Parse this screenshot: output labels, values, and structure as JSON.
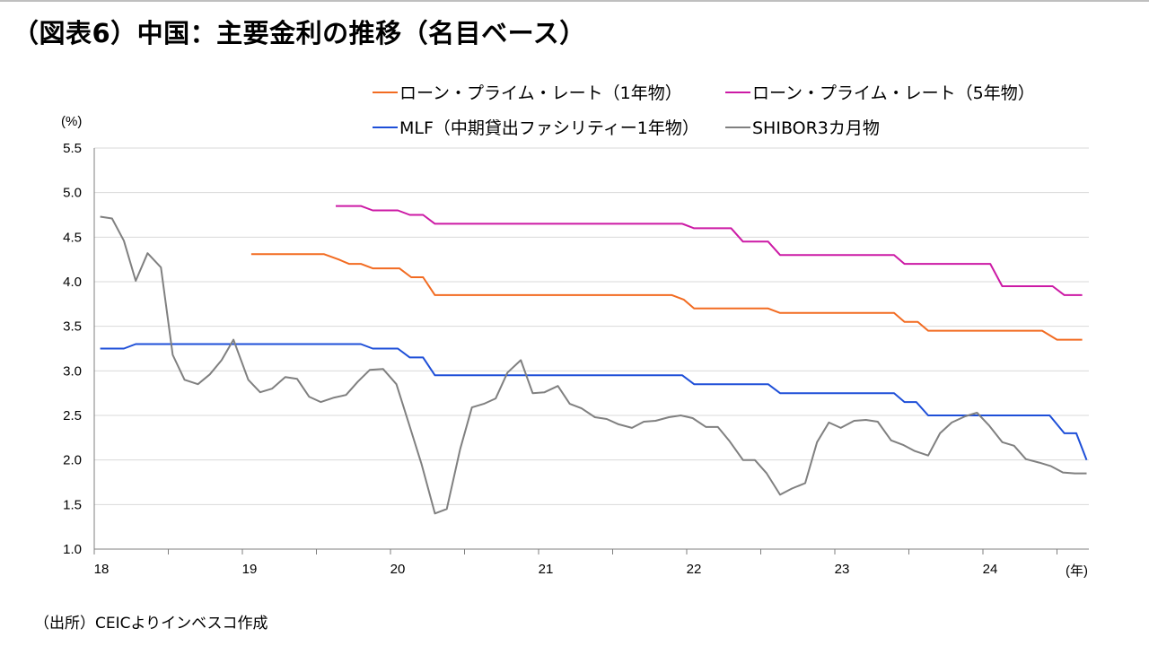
{
  "page": {
    "title": "（図表6）中国：主要金利の推移（名目ベース）",
    "source": "（出所）CEICよりインベスコ作成"
  },
  "chart_data": {
    "type": "line",
    "title": "",
    "xlabel": "(年)",
    "ylabel": "(%)",
    "ylim": [
      1.0,
      5.5
    ],
    "yticks": [
      "1.0",
      "1.5",
      "2.0",
      "2.5",
      "3.0",
      "3.5",
      "4.0",
      "4.5",
      "5.0",
      "5.5"
    ],
    "xlim": [
      2018.0,
      2024.7
    ],
    "xticks": [
      "18",
      "19",
      "20",
      "21",
      "22",
      "23",
      "24"
    ],
    "grid": true,
    "legend": "top",
    "series": [
      {
        "name": "ローン・プライム・レート（1年物）",
        "color": "#f26b21",
        "x": [
          2019.06,
          2019.55,
          2019.65,
          2019.72,
          2019.8,
          2019.88,
          2020.06,
          2020.14,
          2020.22,
          2020.3,
          2021.9,
          2021.98,
          2022.05,
          2022.55,
          2022.63,
          2023.4,
          2023.47,
          2023.56,
          2023.63,
          2024.4,
          2024.5,
          2024.67
        ],
        "values": [
          4.31,
          4.31,
          4.25,
          4.2,
          4.2,
          4.15,
          4.15,
          4.05,
          4.05,
          3.85,
          3.85,
          3.8,
          3.7,
          3.7,
          3.65,
          3.65,
          3.55,
          3.55,
          3.45,
          3.45,
          3.35,
          3.35
        ]
      },
      {
        "name": "ローン・プライム・レート（5年物）",
        "color": "#cc1aa5",
        "x": [
          2019.63,
          2019.8,
          2019.88,
          2020.05,
          2020.13,
          2020.22,
          2020.3,
          2021.97,
          2022.05,
          2022.3,
          2022.38,
          2022.55,
          2022.63,
          2023.4,
          2023.47,
          2024.05,
          2024.13,
          2024.47,
          2024.55,
          2024.67
        ],
        "values": [
          4.85,
          4.85,
          4.8,
          4.8,
          4.75,
          4.75,
          4.65,
          4.65,
          4.6,
          4.6,
          4.45,
          4.45,
          4.3,
          4.3,
          4.2,
          4.2,
          3.95,
          3.95,
          3.85,
          3.85
        ]
      },
      {
        "name": "MLF（中期貸出ファシリティー1年物）",
        "color": "#1e4fd8",
        "x": [
          2018.04,
          2018.2,
          2018.28,
          2019.8,
          2019.88,
          2020.05,
          2020.13,
          2020.22,
          2020.3,
          2021.97,
          2022.05,
          2022.55,
          2022.63,
          2023.4,
          2023.47,
          2023.55,
          2023.63,
          2024.45,
          2024.55,
          2024.63,
          2024.7
        ],
        "values": [
          3.25,
          3.25,
          3.3,
          3.3,
          3.25,
          3.25,
          3.15,
          3.15,
          2.95,
          2.95,
          2.85,
          2.85,
          2.75,
          2.75,
          2.65,
          2.65,
          2.5,
          2.5,
          2.3,
          2.3,
          2.0
        ]
      },
      {
        "name": "SHIBOR3カ月物",
        "color": "#808080",
        "x": [
          2018.04,
          2018.12,
          2018.2,
          2018.28,
          2018.36,
          2018.45,
          2018.53,
          2018.61,
          2018.7,
          2018.78,
          2018.86,
          2018.94,
          2019.04,
          2019.12,
          2019.2,
          2019.29,
          2019.37,
          2019.45,
          2019.53,
          2019.62,
          2019.7,
          2019.78,
          2019.86,
          2019.95,
          2020.04,
          2020.12,
          2020.21,
          2020.3,
          2020.38,
          2020.47,
          2020.55,
          2020.63,
          2020.71,
          2020.79,
          2020.88,
          2020.96,
          2021.04,
          2021.13,
          2021.21,
          2021.29,
          2021.38,
          2021.46,
          2021.54,
          2021.63,
          2021.71,
          2021.79,
          2021.88,
          2021.96,
          2022.04,
          2022.13,
          2022.21,
          2022.29,
          2022.38,
          2022.46,
          2022.54,
          2022.63,
          2022.71,
          2022.8,
          2022.88,
          2022.96,
          2023.04,
          2023.13,
          2023.21,
          2023.29,
          2023.38,
          2023.46,
          2023.54,
          2023.63,
          2023.71,
          2023.79,
          2023.88,
          2023.96,
          2024.04,
          2024.13,
          2024.21,
          2024.29,
          2024.38,
          2024.46,
          2024.54,
          2024.62,
          2024.7
        ],
        "values": [
          4.73,
          4.71,
          4.46,
          4.01,
          4.32,
          4.16,
          3.18,
          2.9,
          2.85,
          2.96,
          3.12,
          3.35,
          2.9,
          2.76,
          2.8,
          2.93,
          2.91,
          2.71,
          2.65,
          2.7,
          2.73,
          2.88,
          3.01,
          3.02,
          2.85,
          2.43,
          1.95,
          1.4,
          1.45,
          2.12,
          2.59,
          2.63,
          2.69,
          2.98,
          3.12,
          2.75,
          2.76,
          2.83,
          2.63,
          2.58,
          2.48,
          2.46,
          2.4,
          2.36,
          2.43,
          2.44,
          2.48,
          2.5,
          2.47,
          2.37,
          2.37,
          2.21,
          2.0,
          2.0,
          1.85,
          1.61,
          1.68,
          1.74,
          2.2,
          2.42,
          2.36,
          2.44,
          2.45,
          2.43,
          2.22,
          2.17,
          2.1,
          2.05,
          2.3,
          2.42,
          2.49,
          2.53,
          2.39,
          2.2,
          2.16,
          2.01,
          1.97,
          1.93,
          1.86,
          1.85,
          1.85
        ]
      }
    ]
  }
}
